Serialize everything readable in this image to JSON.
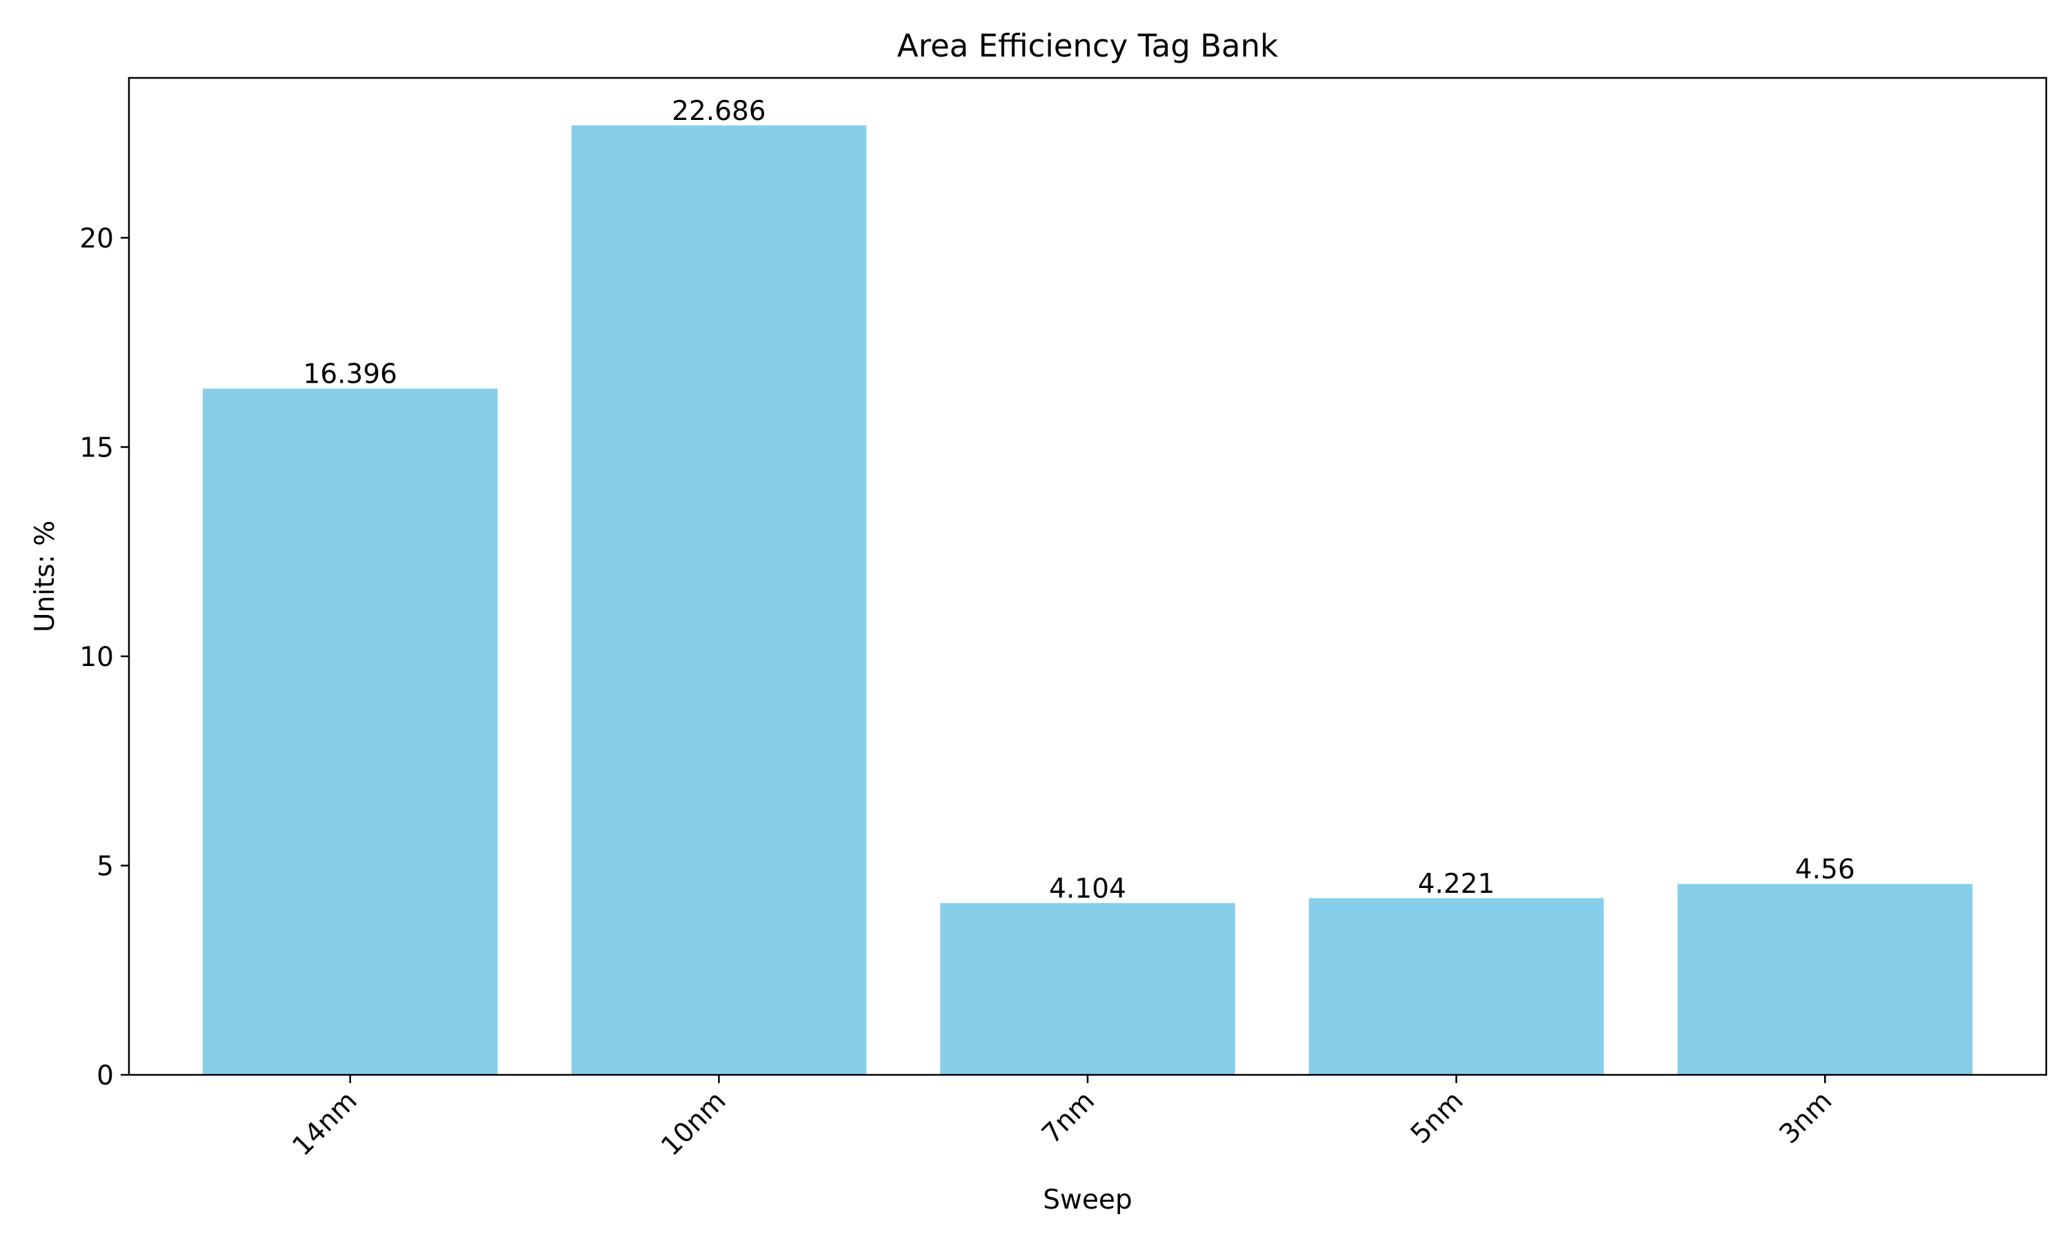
{
  "chart_data": {
    "type": "bar",
    "title": "Area Efficiency Tag Bank",
    "xlabel": "Sweep",
    "ylabel": "Units: %",
    "categories": [
      "14nm",
      "10nm",
      "7nm",
      "5nm",
      "3nm"
    ],
    "values": [
      16.396,
      22.686,
      4.104,
      4.221,
      4.56
    ],
    "data_labels": [
      "16.396",
      "22.686",
      "4.104",
      "4.221",
      "4.56"
    ],
    "ylim": [
      0,
      23.82
    ],
    "yticks": [
      0,
      5,
      10,
      15,
      20
    ],
    "grid": false,
    "bar_color": "#87CEEB"
  }
}
